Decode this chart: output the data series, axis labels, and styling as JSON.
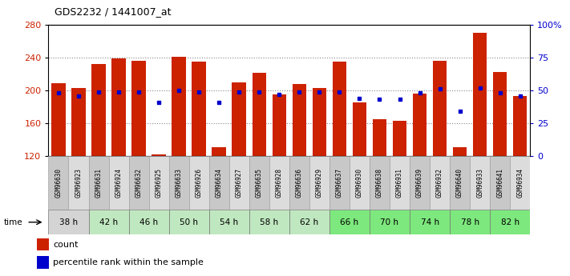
{
  "title": "GDS2232 / 1441007_at",
  "samples": [
    "GSM96630",
    "GSM96923",
    "GSM96631",
    "GSM96924",
    "GSM96632",
    "GSM96925",
    "GSM96633",
    "GSM96926",
    "GSM96634",
    "GSM96927",
    "GSM96635",
    "GSM96928",
    "GSM96636",
    "GSM96929",
    "GSM96637",
    "GSM96930",
    "GSM96638",
    "GSM96931",
    "GSM96639",
    "GSM96932",
    "GSM96640",
    "GSM96933",
    "GSM96641",
    "GSM96934"
  ],
  "counts": [
    209,
    203,
    232,
    239,
    236,
    122,
    241,
    235,
    131,
    210,
    221,
    195,
    208,
    203,
    235,
    185,
    165,
    163,
    196,
    236,
    131,
    270,
    222,
    193
  ],
  "percentile_ranks": [
    48,
    46,
    49,
    49,
    49,
    41,
    50,
    49,
    41,
    49,
    49,
    47,
    49,
    49,
    49,
    44,
    43,
    43,
    48,
    51,
    34,
    52,
    48,
    46
  ],
  "time_groups": [
    {
      "label": "38 h",
      "indices": [
        0,
        1
      ],
      "color": "#d4d4d4"
    },
    {
      "label": "42 h",
      "indices": [
        2,
        3
      ],
      "color": "#c0e8c0"
    },
    {
      "label": "46 h",
      "indices": [
        4,
        5
      ],
      "color": "#c0e8c0"
    },
    {
      "label": "50 h",
      "indices": [
        6,
        7
      ],
      "color": "#c0e8c0"
    },
    {
      "label": "54 h",
      "indices": [
        8,
        9
      ],
      "color": "#c0e8c0"
    },
    {
      "label": "58 h",
      "indices": [
        10,
        11
      ],
      "color": "#c0e8c0"
    },
    {
      "label": "62 h",
      "indices": [
        12,
        13
      ],
      "color": "#c0e8c0"
    },
    {
      "label": "66 h",
      "indices": [
        14,
        15
      ],
      "color": "#7de87d"
    },
    {
      "label": "70 h",
      "indices": [
        16,
        17
      ],
      "color": "#7de87d"
    },
    {
      "label": "74 h",
      "indices": [
        18,
        19
      ],
      "color": "#7de87d"
    },
    {
      "label": "78 h",
      "indices": [
        20,
        21
      ],
      "color": "#7de87d"
    },
    {
      "label": "82 h",
      "indices": [
        22,
        23
      ],
      "color": "#7de87d"
    }
  ],
  "sample_colors_even": "#c8c8c8",
  "sample_colors_odd": "#dcdcdc",
  "bar_color": "#cc2200",
  "dot_color": "#0000cc",
  "ymin": 120,
  "ymax": 280,
  "yticks_left": [
    120,
    160,
    200,
    240,
    280
  ],
  "yticks_right_pct": [
    0,
    25,
    50,
    75,
    100
  ],
  "yticks_right_labels": [
    "0",
    "25",
    "50",
    "75",
    "100%"
  ],
  "bar_width": 0.7,
  "grid_lines": [
    160,
    200,
    240
  ]
}
